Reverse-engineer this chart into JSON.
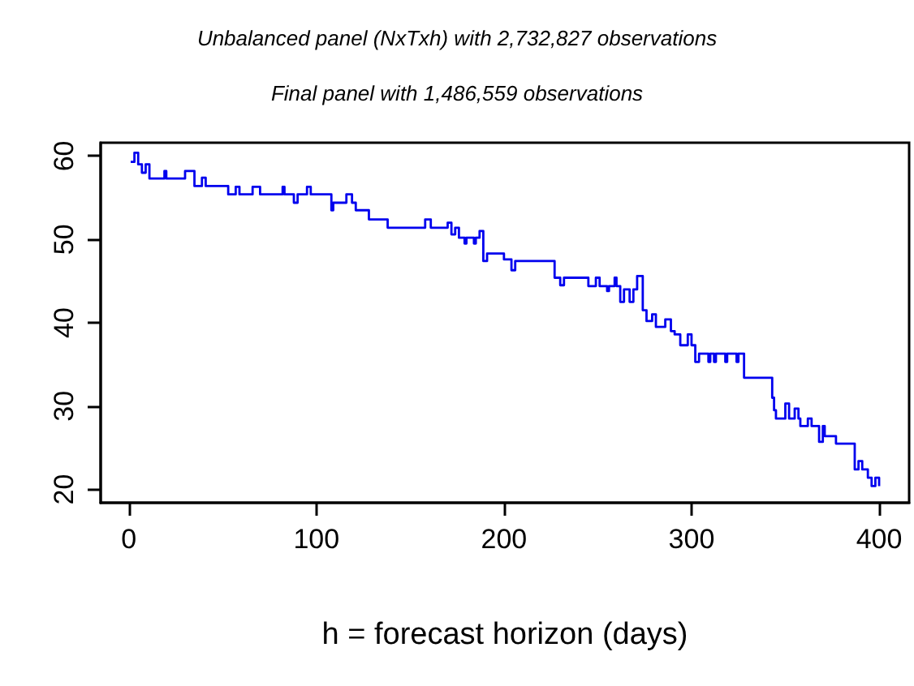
{
  "chart_data": {
    "type": "step",
    "title": "Unbalanced panel (NxTxh) with 2,732,827 observations",
    "subtitle": "Final panel with 1,486,559 observations",
    "xlabel": "h = forecast horizon (days)",
    "xlim": [
      -15,
      416
    ],
    "xticks": [
      0,
      100,
      200,
      300,
      400
    ],
    "ylim": [
      18.4,
      61.6
    ],
    "yticks": [
      20,
      30,
      40,
      50,
      60
    ],
    "marker": "none",
    "line_style": "solid",
    "series": [
      {
        "color": "#0000ee",
        "x": [
          1,
          3,
          5,
          7,
          9,
          11,
          19,
          20,
          30,
          35,
          39,
          41,
          53,
          57,
          59,
          66,
          70,
          82,
          83,
          88,
          90,
          95,
          97,
          108,
          109,
          116,
          119,
          121,
          128,
          138,
          158,
          161,
          170,
          172,
          174,
          176,
          179,
          180,
          184,
          185,
          187,
          189,
          191,
          200,
          204,
          206,
          227,
          230,
          232,
          245,
          249,
          251,
          255,
          256,
          259,
          260,
          262,
          264,
          267,
          269,
          271,
          274,
          276,
          279,
          281,
          286,
          289,
          291,
          294,
          298,
          300,
          302,
          304,
          309,
          310,
          312,
          313,
          318,
          319,
          324,
          325,
          328,
          343,
          344,
          345,
          350,
          352,
          355,
          357,
          358,
          362,
          364,
          368,
          370,
          371,
          377,
          387,
          389,
          391,
          394,
          396,
          398,
          400
        ],
        "values": [
          59.3,
          60.4,
          59,
          58,
          59,
          57.3,
          58.2,
          57.3,
          58.2,
          56.4,
          57.4,
          56.4,
          55.4,
          56.3,
          55.4,
          56.3,
          55.4,
          56.3,
          55.4,
          54.4,
          55.4,
          56.3,
          55.4,
          53.5,
          54.4,
          55.4,
          54.4,
          53.5,
          52.4,
          51.4,
          52.4,
          51.4,
          52,
          50.6,
          51.4,
          50.2,
          49.5,
          50.2,
          49.5,
          50.2,
          51,
          47.4,
          48.3,
          47.6,
          46.3,
          47.4,
          45.4,
          44.5,
          45.4,
          44.4,
          45.4,
          44.4,
          43.8,
          44.4,
          45.4,
          44.4,
          42.5,
          44,
          42.5,
          44,
          45.6,
          41.5,
          40.2,
          41,
          39.5,
          40.4,
          39,
          38.6,
          37.3,
          38.6,
          37.3,
          35.3,
          36.3,
          35.3,
          36.3,
          35.3,
          36.3,
          35.3,
          36.3,
          35.3,
          36.3,
          33.4,
          31,
          29.5,
          28.5,
          30.3,
          28.5,
          29.7,
          28.5,
          27.6,
          28.5,
          27.6,
          25.7,
          27.6,
          26.4,
          25.5,
          22.4,
          23.4,
          22.4,
          21.4,
          20.4,
          21.4,
          20.4
        ]
      }
    ]
  }
}
